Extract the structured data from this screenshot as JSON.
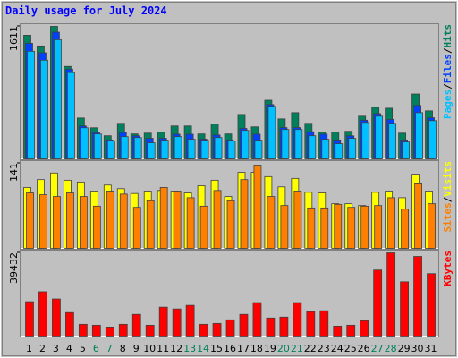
{
  "chart_data": [
    {
      "type": "bar",
      "title": "Daily usage for July 2024",
      "separator": "/",
      "categories": [
        "1",
        "2",
        "3",
        "4",
        "5",
        "6",
        "7",
        "8",
        "9",
        "10",
        "11",
        "12",
        "13",
        "14",
        "15",
        "16",
        "17",
        "18",
        "19",
        "20",
        "21",
        "22",
        "23",
        "24",
        "25",
        "26",
        "27",
        "28",
        "29",
        "30",
        "31"
      ],
      "series": [
        {
          "name": "Pages",
          "color": "#00c0ff",
          "values": [
            1308,
            1200,
            1449,
            1049,
            378,
            303,
            216,
            270,
            259,
            195,
            227,
            270,
            238,
            227,
            259,
            216,
            346,
            227,
            638,
            357,
            357,
            281,
            238,
            184,
            249,
            443,
            519,
            432,
            205,
            562,
            465
          ]
        },
        {
          "name": "Files",
          "color": "#0040ff",
          "values": [
            1405,
            1290,
            1540,
            1090,
            400,
            320,
            230,
            320,
            280,
            250,
            250,
            300,
            300,
            240,
            290,
            230,
            370,
            300,
            660,
            380,
            380,
            330,
            300,
            230,
            280,
            470,
            550,
            480,
            230,
            650,
            500
          ]
        },
        {
          "name": "Hits",
          "color": "#00805c",
          "values": [
            1503,
            1373,
            1611,
            1124,
            497,
            378,
            281,
            432,
            303,
            313,
            324,
            400,
            400,
            303,
            422,
            303,
            540,
            389,
            713,
            486,
            562,
            432,
            324,
            324,
            335,
            519,
            627,
            616,
            313,
            789,
            584
          ]
        }
      ],
      "ylim": [
        0,
        1611
      ],
      "yticks": [
        1611
      ]
    },
    {
      "type": "bar",
      "separator": "/",
      "categories": [
        "1",
        "2",
        "3",
        "4",
        "5",
        "6",
        "7",
        "8",
        "9",
        "10",
        "11",
        "12",
        "13",
        "14",
        "15",
        "16",
        "17",
        "18",
        "19",
        "20",
        "21",
        "22",
        "23",
        "24",
        "25",
        "26",
        "27",
        "28",
        "29",
        "30",
        "31"
      ],
      "series": [
        {
          "name": "Sites",
          "color": "#ff8000",
          "values": [
            92,
            89,
            86,
            92,
            86,
            70,
            95,
            90,
            68,
            79,
            101,
            95,
            84,
            70,
            96,
            79,
            114,
            138,
            86,
            71,
            95,
            67,
            67,
            73,
            68,
            70,
            71,
            84,
            65,
            107,
            74
          ]
        },
        {
          "name": "Visits",
          "color": "#ffff00",
          "values": [
            101,
            114,
            125,
            113,
            110,
            95,
            105,
            99,
            91,
            95,
            96,
            95,
            92,
            104,
            113,
            86,
            126,
            126,
            119,
            102,
            116,
            93,
            92,
            74,
            74,
            71,
            93,
            95,
            84,
            123,
            95
          ]
        }
      ],
      "ylim": [
        0,
        141
      ],
      "yticks": [
        141
      ]
    },
    {
      "type": "bar",
      "categories": [
        "1",
        "2",
        "3",
        "4",
        "5",
        "6",
        "7",
        "8",
        "9",
        "10",
        "11",
        "12",
        "13",
        "14",
        "15",
        "16",
        "17",
        "18",
        "19",
        "20",
        "21",
        "22",
        "23",
        "24",
        "25",
        "26",
        "27",
        "28",
        "29",
        "30",
        "31"
      ],
      "category_colors": [
        "#000000",
        "#000000",
        "#000000",
        "#000000",
        "#000000",
        "#00805c",
        "#00805c",
        "#000000",
        "#000000",
        "#000000",
        "#000000",
        "#000000",
        "#00805c",
        "#00805c",
        "#000000",
        "#000000",
        "#000000",
        "#000000",
        "#000000",
        "#00805c",
        "#00805c",
        "#000000",
        "#000000",
        "#000000",
        "#000000",
        "#000000",
        "#00805c",
        "#00805c",
        "#000000",
        "#000000",
        "#000000"
      ],
      "series": [
        {
          "name": "KBytes",
          "color": "#ff0000",
          "values": [
            16288,
            21000,
            17574,
            11144,
            5572,
            5143,
            4286,
            5572,
            10287,
            5143,
            13716,
            12859,
            14573,
            5572,
            6001,
            7715,
            10287,
            15859,
            8573,
            9001,
            15859,
            11573,
            12001,
            4715,
            5143,
            7287,
            31290,
            39432,
            25717,
            37719,
            29575
          ]
        }
      ],
      "ylim": [
        0,
        39432
      ],
      "yticks": [
        39432
      ]
    }
  ]
}
